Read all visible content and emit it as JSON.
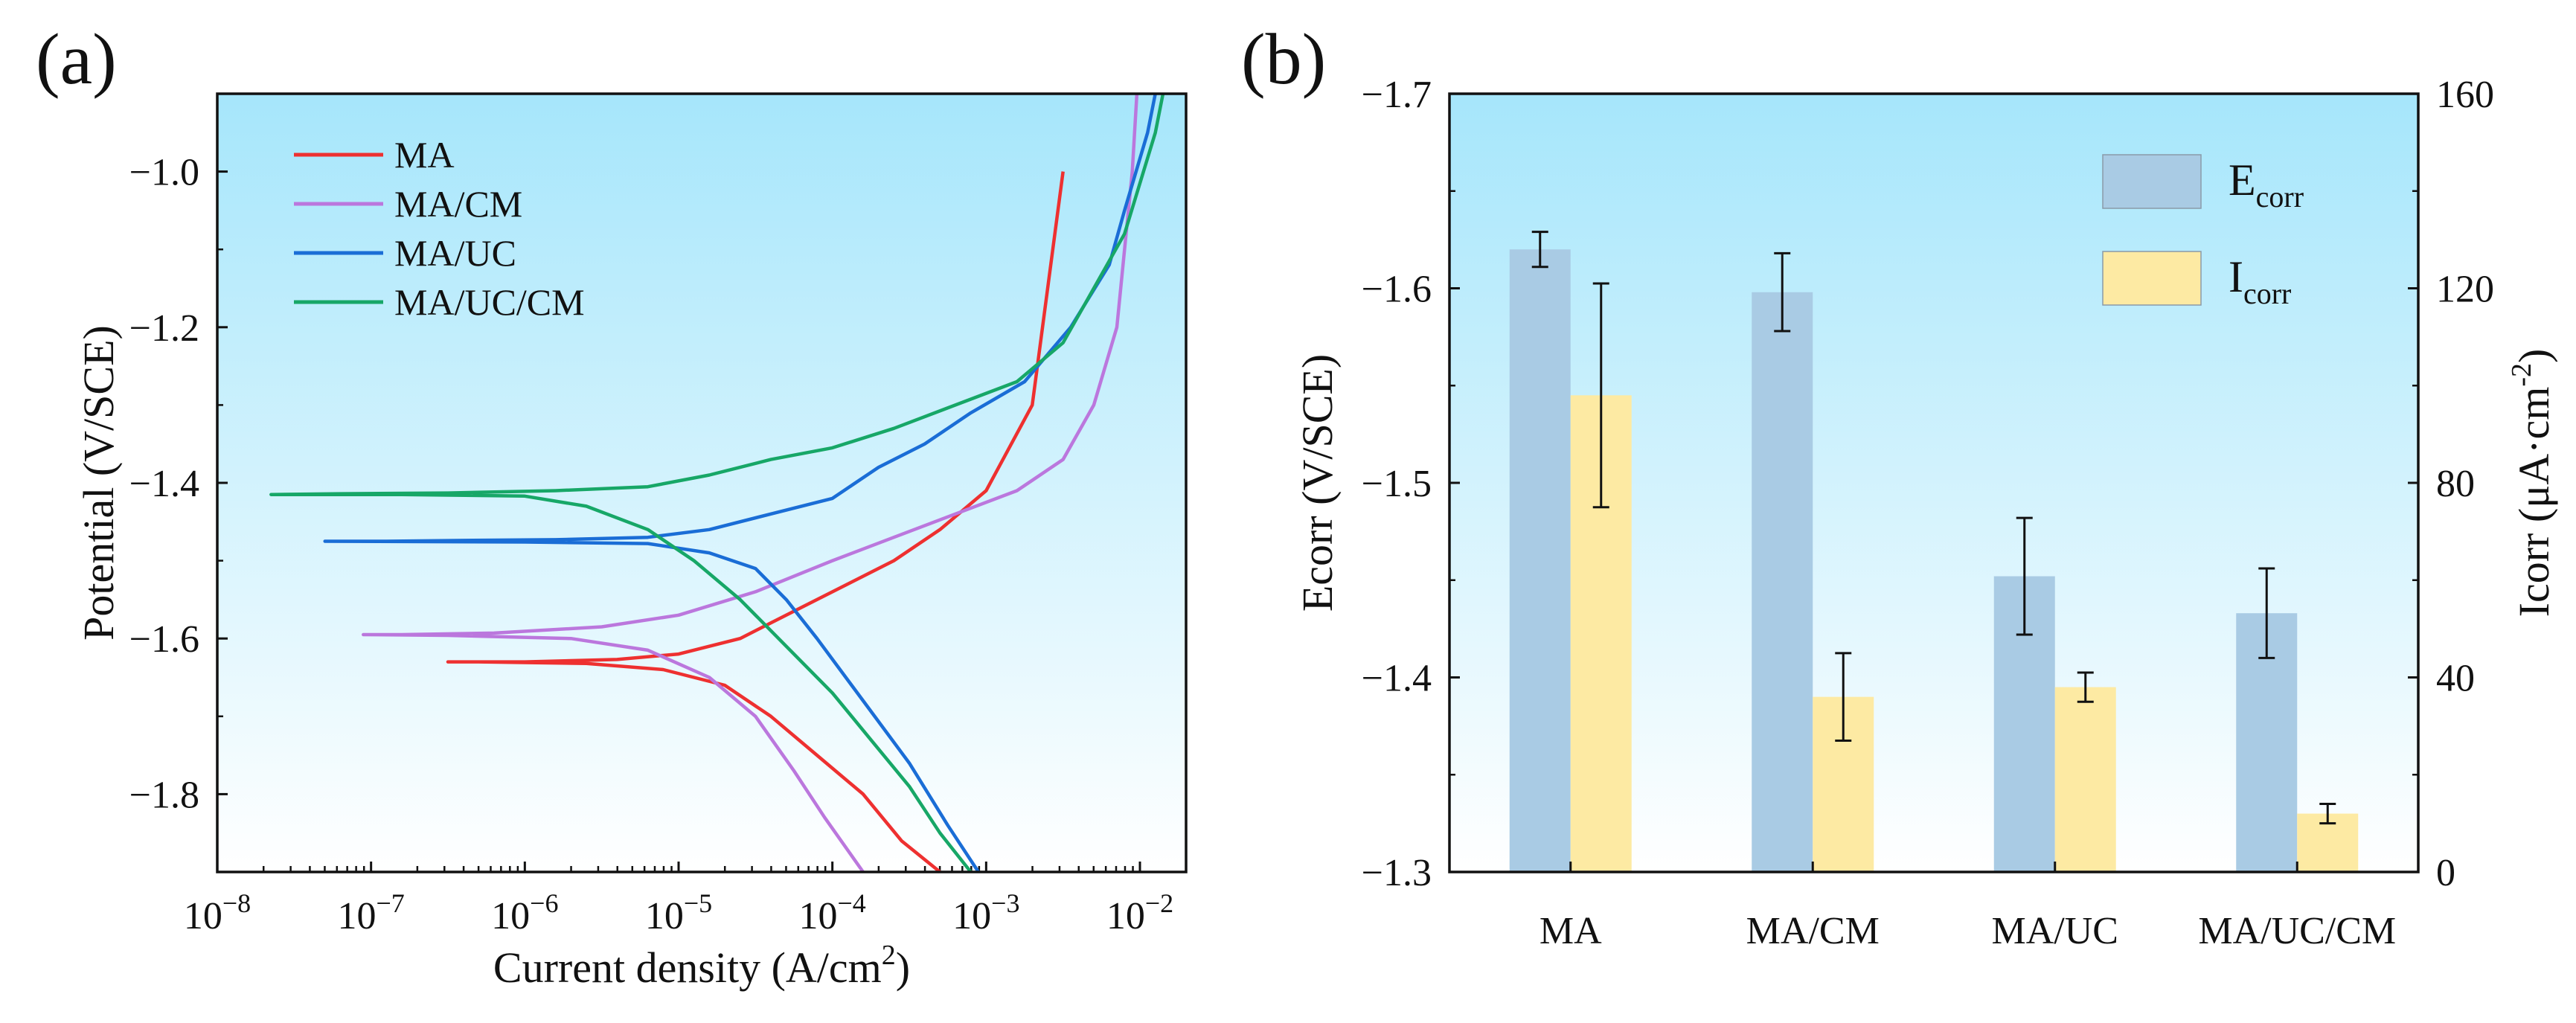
{
  "colors": {
    "MA": "#ee3030",
    "MA_CM": "#bb77dd",
    "MA_UC": "#1a6dd6",
    "MA_UC_CM": "#17a767",
    "bg_top": "#a6e6fb",
    "bg_bottom": "#ffffff",
    "ecorr_bar": "#a9cbe4",
    "icorr_bar": "#fdeaa3"
  },
  "chart_data": [
    {
      "type": "line",
      "panel_label": "(a)",
      "xlabel_main": "Current density (A/cm",
      "xlabel_sup": "2",
      "xlabel_end": ")",
      "ylabel": "Potential (V/SCE)",
      "x_scale": "log",
      "xlim_log10": [
        -8,
        -1.7
      ],
      "ylim": [
        -1.9,
        -0.9
      ],
      "x_ticks": [
        {
          "base": "10",
          "exp": "−8",
          "log": -8
        },
        {
          "base": "10",
          "exp": "−7",
          "log": -7
        },
        {
          "base": "10",
          "exp": "−6",
          "log": -6
        },
        {
          "base": "10",
          "exp": "−5",
          "log": -5
        },
        {
          "base": "10",
          "exp": "−4",
          "log": -4
        },
        {
          "base": "10",
          "exp": "−3",
          "log": -3
        },
        {
          "base": "10",
          "exp": "−2",
          "log": -2
        }
      ],
      "y_ticks": [
        {
          "value": -1.0,
          "label": "−1.0"
        },
        {
          "value": -1.2,
          "label": "−1.2"
        },
        {
          "value": -1.4,
          "label": "−1.4"
        },
        {
          "value": -1.6,
          "label": "−1.6"
        },
        {
          "value": -1.8,
          "label": "−1.8"
        }
      ],
      "legend_position": "top-left",
      "series": [
        {
          "name": "MA",
          "color_key": "MA",
          "points": [
            [
              -2.5,
              -1.0
            ],
            [
              -2.7,
              -1.3
            ],
            [
              -3.0,
              -1.41
            ],
            [
              -3.3,
              -1.46
            ],
            [
              -3.6,
              -1.5
            ],
            [
              -3.9,
              -1.53
            ],
            [
              -4.3,
              -1.57
            ],
            [
              -4.6,
              -1.6
            ],
            [
              -5.0,
              -1.62
            ],
            [
              -5.4,
              -1.627
            ],
            [
              -6.0,
              -1.63
            ],
            [
              -6.5,
              -1.63
            ],
            [
              -6.3,
              -1.63
            ],
            [
              -5.6,
              -1.632
            ],
            [
              -5.1,
              -1.64
            ],
            [
              -4.7,
              -1.66
            ],
            [
              -4.4,
              -1.7
            ],
            [
              -4.1,
              -1.75
            ],
            [
              -3.8,
              -1.8
            ],
            [
              -3.55,
              -1.86
            ],
            [
              -3.3,
              -1.9
            ]
          ]
        },
        {
          "name": "MA/CM",
          "color_key": "MA_CM",
          "points": [
            [
              -2.02,
              -0.9
            ],
            [
              -2.05,
              -1.0
            ],
            [
              -2.15,
              -1.2
            ],
            [
              -2.3,
              -1.3
            ],
            [
              -2.5,
              -1.37
            ],
            [
              -2.8,
              -1.41
            ],
            [
              -3.2,
              -1.44
            ],
            [
              -3.6,
              -1.47
            ],
            [
              -4.0,
              -1.5
            ],
            [
              -4.5,
              -1.54
            ],
            [
              -5.0,
              -1.57
            ],
            [
              -5.5,
              -1.585
            ],
            [
              -6.2,
              -1.593
            ],
            [
              -6.8,
              -1.595
            ],
            [
              -7.05,
              -1.595
            ],
            [
              -6.5,
              -1.596
            ],
            [
              -5.7,
              -1.6
            ],
            [
              -5.2,
              -1.615
            ],
            [
              -4.8,
              -1.65
            ],
            [
              -4.5,
              -1.7
            ],
            [
              -4.25,
              -1.77
            ],
            [
              -4.05,
              -1.83
            ],
            [
              -3.8,
              -1.9
            ]
          ]
        },
        {
          "name": "MA/UC",
          "color_key": "MA_UC",
          "points": [
            [
              -1.9,
              -0.9
            ],
            [
              -1.95,
              -0.95
            ],
            [
              -2.1,
              -1.05
            ],
            [
              -2.2,
              -1.12
            ],
            [
              -2.45,
              -1.2
            ],
            [
              -2.75,
              -1.27
            ],
            [
              -3.1,
              -1.31
            ],
            [
              -3.4,
              -1.35
            ],
            [
              -3.7,
              -1.38
            ],
            [
              -4.0,
              -1.42
            ],
            [
              -4.4,
              -1.44
            ],
            [
              -4.8,
              -1.46
            ],
            [
              -5.2,
              -1.47
            ],
            [
              -5.8,
              -1.473
            ],
            [
              -6.4,
              -1.474
            ],
            [
              -6.9,
              -1.475
            ],
            [
              -7.3,
              -1.475
            ],
            [
              -6.0,
              -1.476
            ],
            [
              -5.2,
              -1.478
            ],
            [
              -4.8,
              -1.49
            ],
            [
              -4.5,
              -1.51
            ],
            [
              -4.3,
              -1.55
            ],
            [
              -4.1,
              -1.6
            ],
            [
              -3.8,
              -1.68
            ],
            [
              -3.5,
              -1.76
            ],
            [
              -3.25,
              -1.84
            ],
            [
              -3.05,
              -1.9
            ]
          ]
        },
        {
          "name": "MA/UC/CM",
          "color_key": "MA_UC_CM",
          "points": [
            [
              -1.85,
              -0.9
            ],
            [
              -1.9,
              -0.95
            ],
            [
              -2.1,
              -1.08
            ],
            [
              -2.3,
              -1.15
            ],
            [
              -2.5,
              -1.22
            ],
            [
              -2.8,
              -1.27
            ],
            [
              -3.2,
              -1.3
            ],
            [
              -3.6,
              -1.33
            ],
            [
              -4.0,
              -1.355
            ],
            [
              -4.4,
              -1.37
            ],
            [
              -4.8,
              -1.39
            ],
            [
              -5.2,
              -1.405
            ],
            [
              -5.8,
              -1.41
            ],
            [
              -6.5,
              -1.413
            ],
            [
              -7.2,
              -1.414
            ],
            [
              -7.65,
              -1.415
            ],
            [
              -6.8,
              -1.415
            ],
            [
              -6.0,
              -1.417
            ],
            [
              -5.6,
              -1.43
            ],
            [
              -5.2,
              -1.46
            ],
            [
              -4.9,
              -1.5
            ],
            [
              -4.6,
              -1.55
            ],
            [
              -4.3,
              -1.61
            ],
            [
              -4.0,
              -1.67
            ],
            [
              -3.75,
              -1.73
            ],
            [
              -3.5,
              -1.79
            ],
            [
              -3.3,
              -1.85
            ],
            [
              -3.1,
              -1.9
            ]
          ]
        }
      ]
    },
    {
      "type": "bar",
      "panel_label": "(b)",
      "categories": [
        "MA",
        "MA/CM",
        "MA/UC",
        "MA/UC/CM"
      ],
      "ylabel_left": "Ecorr (V/SCE)",
      "ylabel_right_main": "Icorr (μA·cm",
      "ylabel_right_sup": "-2",
      "ylabel_right_end": ")",
      "left_axis_reversed": true,
      "ylim_left": [
        -1.3,
        -1.7
      ],
      "ylim_right": [
        0,
        160
      ],
      "y_ticks_left": [
        {
          "value": -1.7,
          "label": "−1.7"
        },
        {
          "value": -1.6,
          "label": "−1.6"
        },
        {
          "value": -1.5,
          "label": "−1.5"
        },
        {
          "value": -1.4,
          "label": "−1.4"
        },
        {
          "value": -1.3,
          "label": "−1.3"
        }
      ],
      "y_ticks_right": [
        {
          "value": 160,
          "label": "160"
        },
        {
          "value": 120,
          "label": "120"
        },
        {
          "value": 80,
          "label": "80"
        },
        {
          "value": 40,
          "label": "40"
        },
        {
          "value": 0,
          "label": "0"
        }
      ],
      "legend_position": "top-right",
      "series": [
        {
          "name": "E",
          "name_sub": "corr",
          "axis": "left",
          "color_key": "ecorr_bar",
          "values": [
            -1.62,
            -1.598,
            -1.452,
            -1.433
          ],
          "errors": [
            0.009,
            0.02,
            0.03,
            0.023
          ]
        },
        {
          "name": "I",
          "name_sub": "corr",
          "axis": "right",
          "color_key": "icorr_bar",
          "values": [
            98,
            36,
            38,
            12
          ],
          "errors": [
            23,
            9,
            3,
            2
          ]
        }
      ]
    }
  ]
}
